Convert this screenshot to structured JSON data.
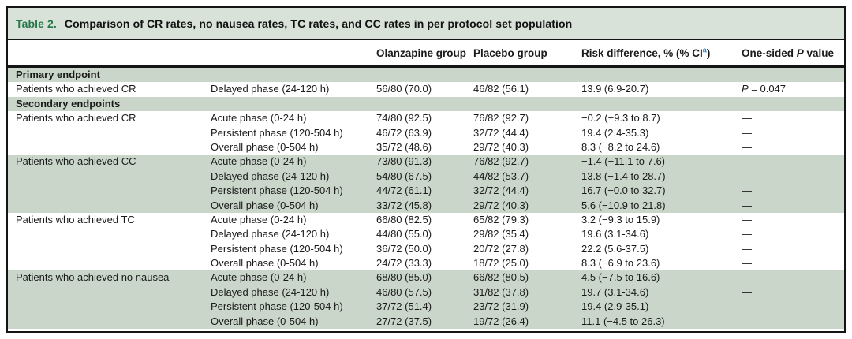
{
  "colors": {
    "stripe_green": "#c9d6c9",
    "title_band_green": "#d8e2d8",
    "title_accent_green": "#27784a",
    "footnote_blue": "#2b7fc2",
    "text_ink": "#1a1a1a",
    "border_black": "#141414"
  },
  "title": {
    "label": "Table 2.",
    "text": "Comparison of CR rates, no nausea rates, TC rates, and CC rates in per protocol set population"
  },
  "header": {
    "olanzapine": "Olanzapine group",
    "placebo": "Placebo group",
    "risk_prefix": "Risk difference, % (% CI",
    "risk_sup": "a",
    "risk_suffix": ")",
    "pvalue_pre": "One-sided ",
    "pvalue_p": "P",
    "pvalue_post": " value"
  },
  "rows": [
    {
      "type": "section",
      "label": "Primary endpoint",
      "shaded": true
    },
    {
      "type": "data",
      "label": "Patients who achieved CR",
      "phase": "Delayed phase (24-120 h)",
      "olanzapine": "56/80 (70.0)",
      "placebo": "46/82 (56.1)",
      "risk": "13.9 (6.9-20.7)",
      "p_italic": "P",
      "p_rest": " = 0.047",
      "shaded": false
    },
    {
      "type": "section",
      "label": "Secondary endpoints",
      "shaded": true
    },
    {
      "type": "data",
      "label": "Patients who achieved CR",
      "phase": "Acute phase (0-24 h)",
      "olanzapine": "74/80 (92.5)",
      "placebo": "76/82 (92.7)",
      "risk": "−0.2 (−9.3 to 8.7)",
      "p": "—",
      "shaded": false
    },
    {
      "type": "data",
      "label": "",
      "phase": "Persistent phase (120-504 h)",
      "olanzapine": "46/72 (63.9)",
      "placebo": "32/72 (44.4)",
      "risk": "19.4 (2.4-35.3)",
      "p": "—",
      "shaded": false
    },
    {
      "type": "data",
      "label": "",
      "phase": "Overall phase (0-504 h)",
      "olanzapine": "35/72 (48.6)",
      "placebo": "29/72 (40.3)",
      "risk": "8.3 (−8.2 to 24.6)",
      "p": "—",
      "shaded": false
    },
    {
      "type": "data",
      "label": "Patients who achieved CC",
      "phase": "Acute phase (0-24 h)",
      "olanzapine": "73/80 (91.3)",
      "placebo": "76/82 (92.7)",
      "risk": "−1.4 (−11.1 to 7.6)",
      "p": "—",
      "shaded": true
    },
    {
      "type": "data",
      "label": "",
      "phase": "Delayed phase (24-120 h)",
      "olanzapine": "54/80 (67.5)",
      "placebo": "44/82 (53.7)",
      "risk": "13.8 (−1.4 to 28.7)",
      "p": "—",
      "shaded": true
    },
    {
      "type": "data",
      "label": "",
      "phase": "Persistent phase (120-504 h)",
      "olanzapine": "44/72 (61.1)",
      "placebo": "32/72 (44.4)",
      "risk": "16.7 (−0.0 to 32.7)",
      "p": "—",
      "shaded": true
    },
    {
      "type": "data",
      "label": "",
      "phase": "Overall phase (0-504 h)",
      "olanzapine": "33/72 (45.8)",
      "placebo": "29/72 (40.3)",
      "risk": "5.6 (−10.9 to 21.8)",
      "p": "—",
      "shaded": true
    },
    {
      "type": "data",
      "label": "Patients who achieved TC",
      "phase": "Acute phase (0-24 h)",
      "olanzapine": "66/80 (82.5)",
      "placebo": "65/82 (79.3)",
      "risk": "3.2 (−9.3 to 15.9)",
      "p": "—",
      "shaded": false
    },
    {
      "type": "data",
      "label": "",
      "phase": "Delayed phase (24-120 h)",
      "olanzapine": "44/80 (55.0)",
      "placebo": "29/82 (35.4)",
      "risk": "19.6 (3.1-34.6)",
      "p": "—",
      "shaded": false
    },
    {
      "type": "data",
      "label": "",
      "phase": "Persistent phase (120-504 h)",
      "olanzapine": "36/72 (50.0)",
      "placebo": "20/72 (27.8)",
      "risk": "22.2 (5.6-37.5)",
      "p": "—",
      "shaded": false
    },
    {
      "type": "data",
      "label": "",
      "phase": "Overall phase (0-504 h)",
      "olanzapine": "24/72 (33.3)",
      "placebo": "18/72 (25.0)",
      "risk": "8.3 (−6.9 to 23.6)",
      "p": "—",
      "shaded": false
    },
    {
      "type": "data",
      "label": "Patients who achieved no nausea",
      "phase": "Acute phase (0-24 h)",
      "olanzapine": "68/80 (85.0)",
      "placebo": "66/82 (80.5)",
      "risk": "4.5 (−7.5 to 16.6)",
      "p": "—",
      "shaded": true
    },
    {
      "type": "data",
      "label": "",
      "phase": "Delayed phase (24-120 h)",
      "olanzapine": "46/80 (57.5)",
      "placebo": "31/82 (37.8)",
      "risk": "19.7 (3.1-34.6)",
      "p": "—",
      "shaded": true
    },
    {
      "type": "data",
      "label": "",
      "phase": "Persistent phase (120-504 h)",
      "olanzapine": "37/72 (51.4)",
      "placebo": "23/72 (31.9)",
      "risk": "19.4 (2.9-35.1)",
      "p": "—",
      "shaded": true
    },
    {
      "type": "data",
      "label": "",
      "phase": "Overall phase (0-504 h)",
      "olanzapine": "27/72 (37.5)",
      "placebo": "19/72 (26.4)",
      "risk": "11.1 (−4.5 to 26.3)",
      "p": "—",
      "shaded": true
    }
  ]
}
